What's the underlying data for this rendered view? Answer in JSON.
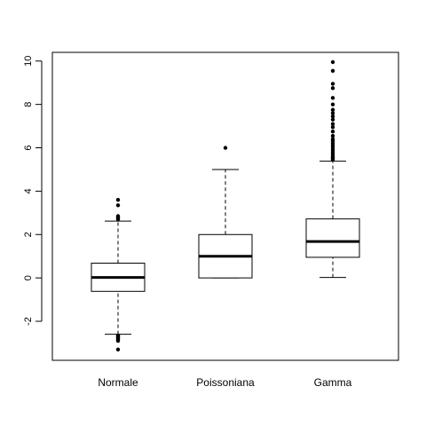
{
  "chart_data": {
    "type": "boxplot",
    "title": "",
    "xlabel": "",
    "ylabel": "",
    "ylim": [
      -3.8,
      10.4
    ],
    "yticks": [
      -2,
      0,
      2,
      4,
      6,
      8,
      10
    ],
    "ytick_labels": [
      "-2",
      "0",
      "2",
      "4",
      "6",
      "8",
      "10"
    ],
    "categories": [
      "Normale",
      "Poissoniana",
      "Gamma"
    ],
    "boxes": [
      {
        "name": "Normale",
        "whisker_low": -2.6,
        "q1": -0.62,
        "median": 0.02,
        "q3": 0.68,
        "whisker_high": 2.62,
        "outliers": [
          -3.3,
          -2.9,
          -2.85,
          -2.8,
          -2.75,
          -2.7,
          -2.68,
          -2.65,
          2.7,
          2.75,
          2.8,
          2.85,
          3.35,
          3.6
        ]
      },
      {
        "name": "Poissoniana",
        "whisker_low": 0,
        "q1": 0,
        "median": 1,
        "q3": 2,
        "whisker_high": 5,
        "outliers": [
          6
        ]
      },
      {
        "name": "Gamma",
        "whisker_low": 0.02,
        "q1": 0.95,
        "median": 1.68,
        "q3": 2.72,
        "whisker_high": 5.38,
        "outliers": [
          5.45,
          5.5,
          5.55,
          5.6,
          5.7,
          5.8,
          5.9,
          6.0,
          6.1,
          6.2,
          6.3,
          6.4,
          6.55,
          6.75,
          6.95,
          7.1,
          7.3,
          7.45,
          7.6,
          7.75,
          8.0,
          8.3,
          8.75,
          8.95,
          9.55,
          9.95
        ]
      }
    ],
    "colors": {
      "box_fill": "#ffffff",
      "stroke": "#000000",
      "point": "#000000"
    }
  }
}
